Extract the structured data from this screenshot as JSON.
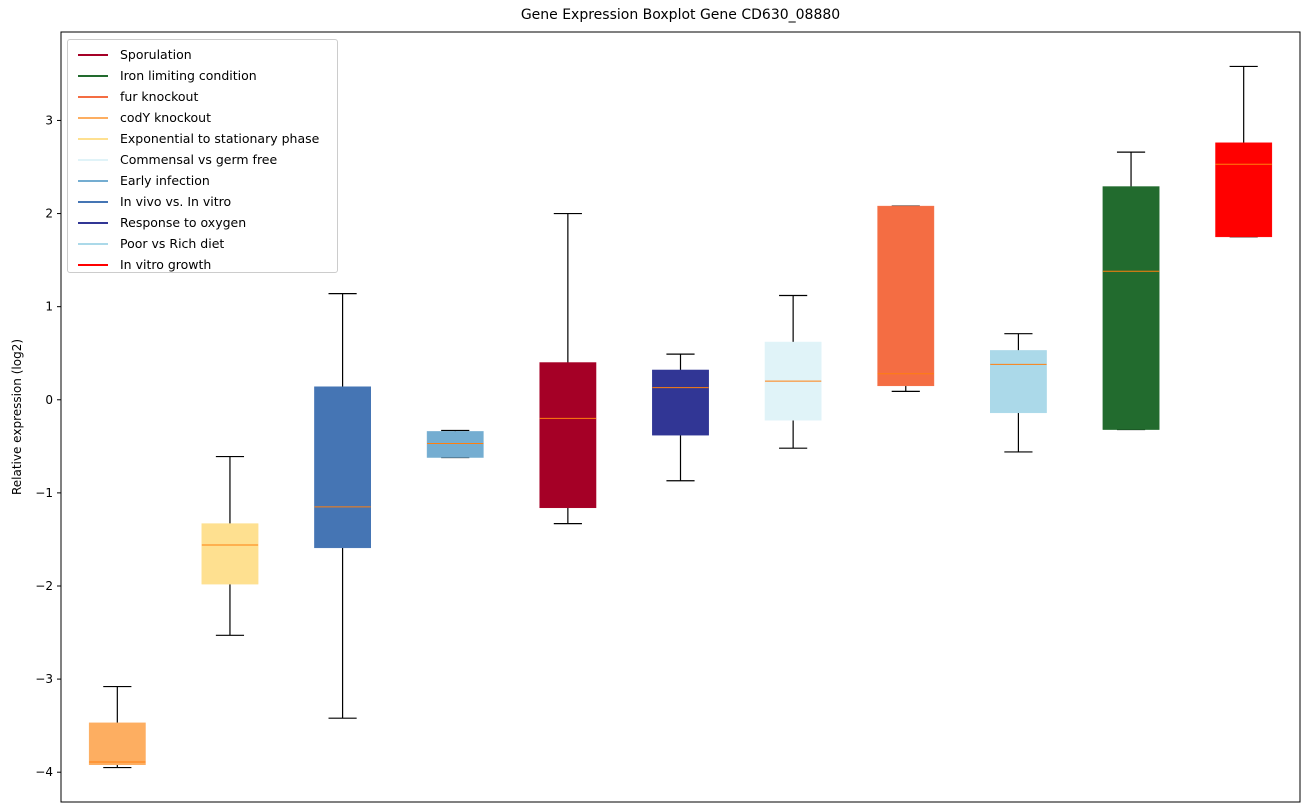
{
  "chart_data": {
    "type": "boxplot",
    "title": "Gene Expression Boxplot Gene CD630_08880",
    "xlabel": "",
    "ylabel": "Relative expression (log2)",
    "ylim": [
      -4.32,
      3.95
    ],
    "yticks": [
      -4,
      -3,
      -2,
      -1,
      0,
      1,
      2,
      3
    ],
    "ytick_labels": [
      "−4",
      "−3",
      "−2",
      "−1",
      "0",
      "1",
      "2",
      "3"
    ],
    "grid": false,
    "legend_position": "top-left",
    "median_color": "#ff7f0e",
    "series": [
      {
        "name": "codY knockout",
        "color": "#fdae61",
        "whisker_low": -3.95,
        "q1": -3.92,
        "median": -3.89,
        "q3": -3.47,
        "whisker_high": -3.08
      },
      {
        "name": "Exponential to stationary phase",
        "color": "#fee090",
        "whisker_low": -2.53,
        "q1": -1.98,
        "median": -1.56,
        "q3": -1.33,
        "whisker_high": -0.61
      },
      {
        "name": "In vivo vs. In vitro",
        "color": "#4575b4",
        "whisker_low": -3.42,
        "q1": -1.59,
        "median": -1.15,
        "q3": 0.14,
        "whisker_high": 1.14
      },
      {
        "name": "Early infection",
        "color": "#74add1",
        "whisker_low": -0.62,
        "q1": -0.62,
        "median": -0.47,
        "q3": -0.34,
        "whisker_high": -0.33
      },
      {
        "name": "Sporulation",
        "color": "#a50026",
        "whisker_low": -1.33,
        "q1": -1.16,
        "median": -0.2,
        "q3": 0.4,
        "whisker_high": 2.0
      },
      {
        "name": "Response to oxygen",
        "color": "#313695",
        "whisker_low": -0.87,
        "q1": -0.38,
        "median": 0.13,
        "q3": 0.32,
        "whisker_high": 0.49
      },
      {
        "name": "Commensal vs germ free",
        "color": "#e0f3f8",
        "whisker_low": -0.52,
        "q1": -0.22,
        "median": 0.2,
        "q3": 0.62,
        "whisker_high": 1.12
      },
      {
        "name": "fur knockout",
        "color": "#f46d43",
        "whisker_low": 0.09,
        "q1": 0.15,
        "median": 0.28,
        "q3": 2.08,
        "whisker_high": 2.08
      },
      {
        "name": "Poor vs Rich diet",
        "color": "#abd9e9",
        "whisker_low": -0.56,
        "q1": -0.14,
        "median": 0.38,
        "q3": 0.53,
        "whisker_high": 0.71
      },
      {
        "name": "Iron limiting condition",
        "color": "#226b2e",
        "whisker_low": -0.32,
        "q1": -0.32,
        "median": 1.38,
        "q3": 2.29,
        "whisker_high": 2.66
      },
      {
        "name": "In vitro growth",
        "color": "#ff0000",
        "whisker_low": 1.75,
        "q1": 1.75,
        "median": 2.53,
        "q3": 2.76,
        "whisker_high": 3.58
      }
    ],
    "legend": [
      {
        "label": "Sporulation",
        "color": "#a50026"
      },
      {
        "label": "Iron limiting condition",
        "color": "#226b2e"
      },
      {
        "label": "fur knockout",
        "color": "#f46d43"
      },
      {
        "label": "codY knockout",
        "color": "#fdae61"
      },
      {
        "label": "Exponential to stationary phase",
        "color": "#fee090"
      },
      {
        "label": "Commensal vs germ free",
        "color": "#e0f3f8"
      },
      {
        "label": "Early infection",
        "color": "#74add1"
      },
      {
        "label": "In vivo vs. In vitro",
        "color": "#4575b4"
      },
      {
        "label": "Response to oxygen",
        "color": "#313695"
      },
      {
        "label": "Poor vs Rich diet",
        "color": "#abd9e9"
      },
      {
        "label": "In vitro growth",
        "color": "#ff0000"
      }
    ]
  }
}
